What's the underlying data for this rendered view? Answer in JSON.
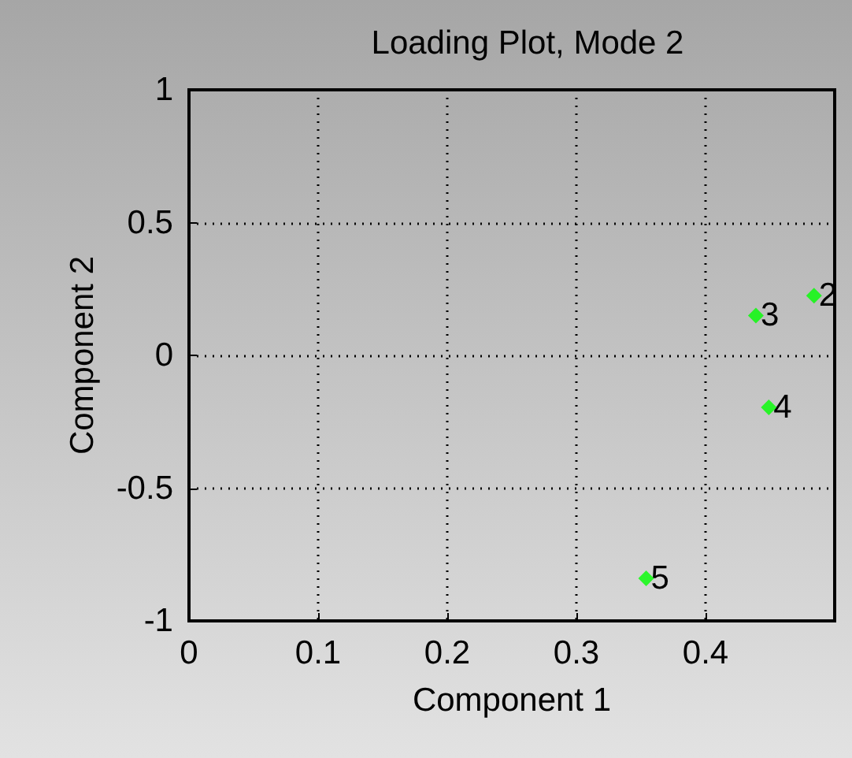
{
  "chart_data": {
    "type": "scatter",
    "title": "Loading Plot, Mode 2",
    "xlabel": "Component 1",
    "ylabel": "Component 2",
    "x": [
      0.484,
      0.439,
      0.449,
      0.354
    ],
    "values": [
      0.225,
      0.15,
      -0.196,
      -0.84
    ],
    "color": "#00ff00",
    "marker": "diamond",
    "xlim": [
      0,
      0.5
    ],
    "xticks": [
      0,
      0.1,
      0.2,
      0.3,
      0.4
    ],
    "ylim": [
      -1,
      1
    ],
    "yticks": [
      -1,
      -0.5,
      0,
      0.5,
      1
    ],
    "grid": true,
    "line_style": "dotted",
    "annotations": [
      {
        "text": "2",
        "x": 0.484,
        "y": 0.225
      },
      {
        "text": "3",
        "x": 0.439,
        "y": 0.15
      },
      {
        "text": "4",
        "x": 0.449,
        "y": -0.196
      },
      {
        "text": "5",
        "x": 0.354,
        "y": -0.84
      }
    ]
  }
}
